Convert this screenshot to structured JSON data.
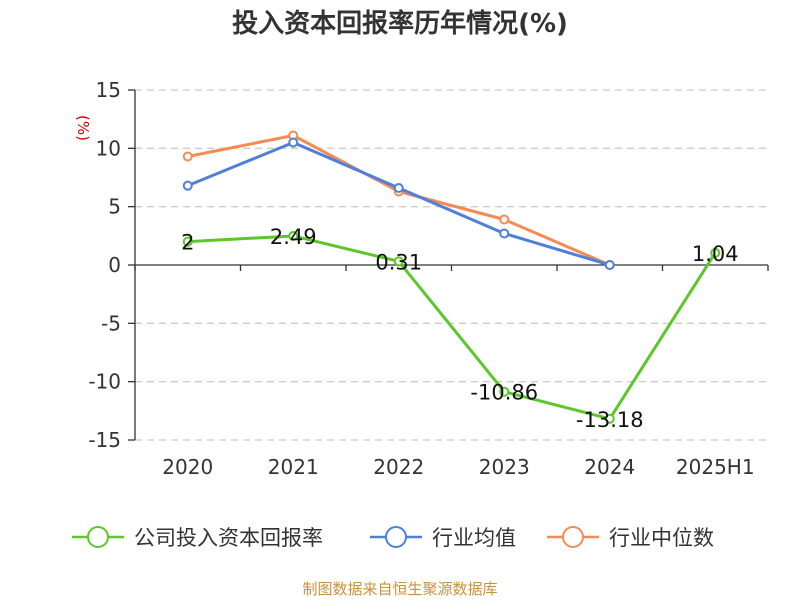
{
  "chart_data": {
    "type": "line",
    "title": "投入资本回报率历年情况(%)",
    "ylabel": "(%)",
    "categories": [
      "2020",
      "2021",
      "2022",
      "2023",
      "2024",
      "2025H1"
    ],
    "ylim": [
      -15,
      15
    ],
    "yticks": [
      15,
      10,
      5,
      0,
      -5,
      -10,
      -15
    ],
    "grid": true,
    "legend_position": "bottom",
    "series": [
      {
        "name": "公司投入资本回报率",
        "color": "#5cc62b",
        "values": [
          2,
          2.49,
          0.31,
          -10.86,
          -13.18,
          1.04
        ],
        "labels": [
          "2",
          "2.49",
          "0.31",
          "-10.86",
          "-13.18",
          "1.04"
        ]
      },
      {
        "name": "行业均值",
        "color": "#4f7fdc",
        "values": [
          6.8,
          10.5,
          6.6,
          2.7,
          0.0,
          null
        ]
      },
      {
        "name": "行业中位数",
        "color": "#f68b52",
        "values": [
          9.3,
          11.1,
          6.3,
          3.9,
          0.0,
          null
        ]
      }
    ]
  },
  "source_text": "制图数据来自恒生聚源数据库"
}
